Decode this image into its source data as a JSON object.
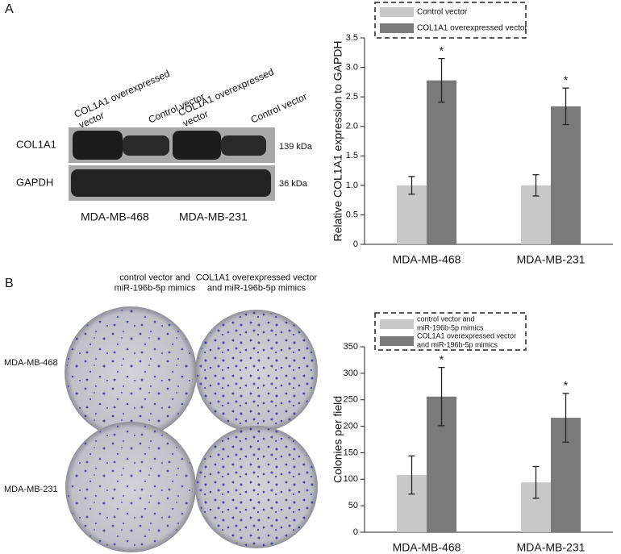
{
  "panel_labels": [
    "A",
    "B"
  ],
  "western_blot": {
    "lanes": [
      "COL1A1 overexpressed\nvector",
      "Control vector",
      "COL1A1 overexpressed\nvector",
      "Control vector"
    ],
    "rows": [
      "COL1A1",
      "GAPDH"
    ],
    "sizes": [
      "139 kDa",
      "36 kDa"
    ],
    "cell_lines": [
      "MDA-MB-468",
      "MDA-MB-231"
    ]
  },
  "colony_assay": {
    "columns": [
      "control vector and\nmiR-196b-5p mimics",
      "COL1A1 overexpressed vector\nand miR-196b-5p mimics"
    ],
    "rows": [
      "MDA-MB-468",
      "MDA-MB-231"
    ]
  },
  "chart_data": [
    {
      "type": "bar",
      "y_label": "Relative COL1A1 expression to GAPDH",
      "categories": [
        "MDA-MB-468",
        "MDA-MB-231"
      ],
      "series": [
        {
          "name": "Control vector",
          "color": "#c8c8c8",
          "values": [
            1.0,
            1.0
          ],
          "errors": [
            0.15,
            0.18
          ]
        },
        {
          "name": "COL1A1 overexpressed vector",
          "color": "#7a7a7a",
          "values": [
            2.78,
            2.34
          ],
          "errors": [
            0.37,
            0.31
          ]
        }
      ],
      "annotations": [
        "*",
        "*"
      ],
      "ylim": [
        0,
        3.5
      ],
      "yticks": [
        0,
        0.5,
        {
          "value": 1,
          "label": "1.0"
        },
        1.5,
        {
          "value": 2,
          "label": "2.0"
        },
        2.5,
        {
          "value": 3,
          "label": "3.0"
        },
        3.5
      ]
    },
    {
      "type": "bar",
      "y_label": "Colonies per field",
      "categories": [
        "MDA-MB-468",
        "MDA-MB-231"
      ],
      "series": [
        {
          "name": "control vector and\nmiR-196b-5p mimics",
          "color": "#c8c8c8",
          "values": [
            108,
            94
          ],
          "errors": [
            36,
            30
          ]
        },
        {
          "name": "COL1A1 overexpressed vector\nand miR-196b-5p mimics",
          "color": "#7a7a7a",
          "values": [
            256,
            216
          ],
          "errors": [
            55,
            46
          ]
        }
      ],
      "annotations": [
        "*",
        "*"
      ],
      "ylim": [
        0,
        350
      ],
      "yticks": [
        0,
        50,
        100,
        150,
        200,
        250,
        300,
        350
      ]
    }
  ]
}
